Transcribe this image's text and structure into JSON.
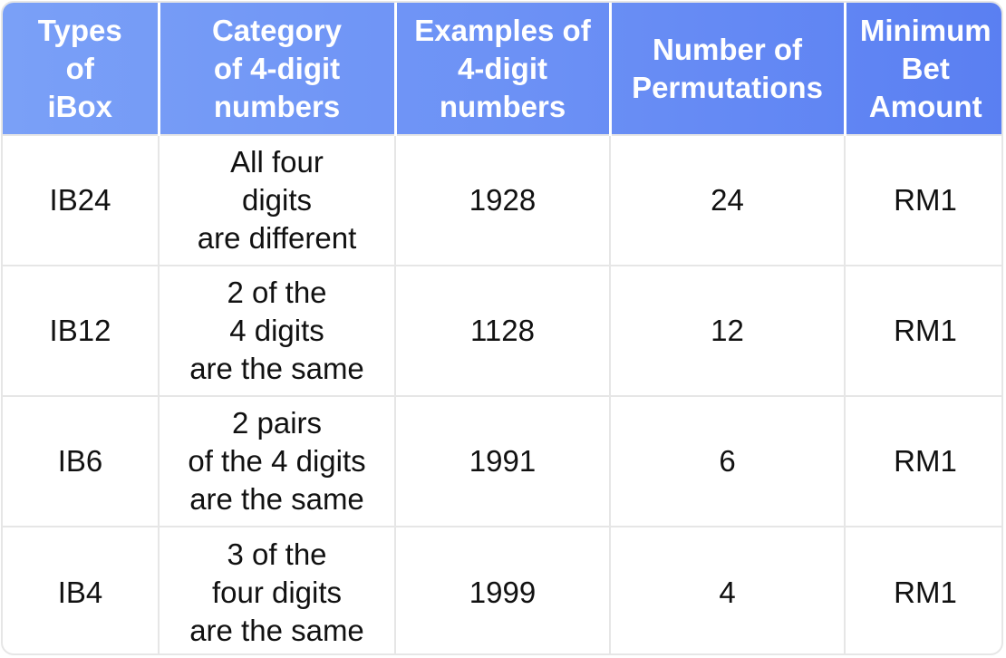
{
  "table": {
    "headers": [
      "Types\nof\niBox",
      "Category\nof 4-digit\nnumbers",
      "Examples of\n4-digit\nnumbers",
      "Number of\nPermutations",
      "Minimum\nBet\nAmount"
    ],
    "rows": [
      [
        "IB24",
        "All four\ndigits\nare different",
        "1928",
        "24",
        "RM1"
      ],
      [
        "IB12",
        "2 of the\n4 digits\nare the same",
        "1128",
        "12",
        "RM1"
      ],
      [
        "IB6",
        "2 pairs\nof the 4 digits\nare the same",
        "1991",
        "6",
        "RM1"
      ],
      [
        "IB4",
        "3 of the\nfour digits\nare the same",
        "1999",
        "4",
        "RM1"
      ]
    ]
  },
  "colors": {
    "header_start": "#7aa0f7",
    "header_end": "#5a7ff2",
    "header_text": "#ffffff",
    "body_text": "#111111",
    "grid": "#e6e6e6"
  }
}
